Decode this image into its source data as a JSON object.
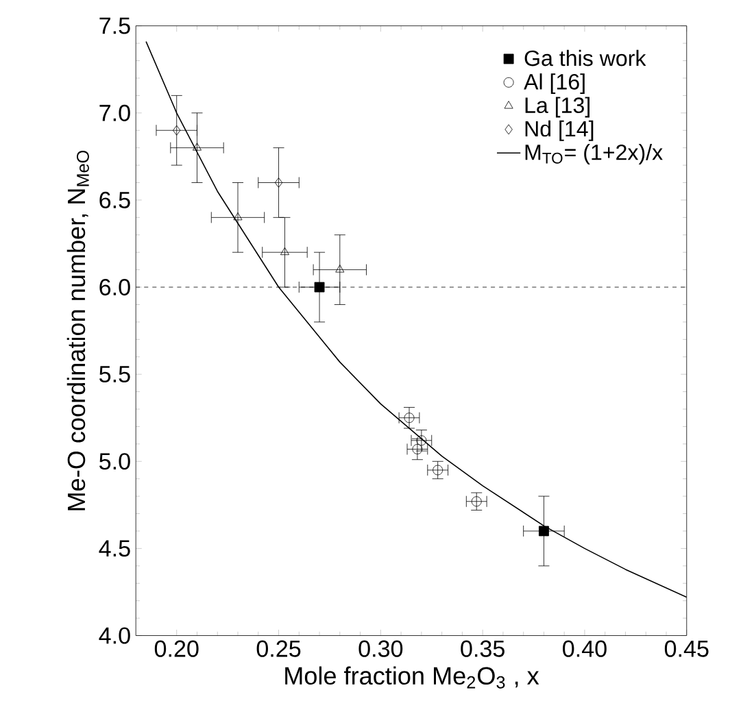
{
  "chart_data": {
    "type": "scatter",
    "xlabel": "Mole fraction Me$_{2}$O$_{3}$ , x",
    "ylabel": "Me-O coordination number, N$_{MeO}$",
    "xlim": [
      0.18,
      0.45
    ],
    "ylim": [
      4.0,
      7.5
    ],
    "xticks": [
      {
        "value": 0.2,
        "label": "0.20"
      },
      {
        "value": 0.25,
        "label": "0.25"
      },
      {
        "value": 0.3,
        "label": "0.30"
      },
      {
        "value": 0.35,
        "label": "0.35"
      },
      {
        "value": 0.4,
        "label": "0.40"
      },
      {
        "value": 0.45,
        "label": "0.45"
      }
    ],
    "yticks": [
      {
        "value": 4.0,
        "label": "4.0"
      },
      {
        "value": 4.5,
        "label": "4.5"
      },
      {
        "value": 5.0,
        "label": "5.0"
      },
      {
        "value": 5.5,
        "label": "5.5"
      },
      {
        "value": 6.0,
        "label": "6.0"
      },
      {
        "value": 6.5,
        "label": "6.5"
      },
      {
        "value": 7.0,
        "label": "7.0"
      },
      {
        "value": 7.5,
        "label": "7.5"
      }
    ],
    "legend": "top right",
    "grid": false,
    "ref_lines": [
      {
        "axis": "y",
        "value": 6.0,
        "line_style": "dashed"
      }
    ],
    "series": [
      {
        "name": "Ga this work",
        "color": "#000000",
        "marker": "square",
        "x": [
          0.27,
          0.38
        ],
        "values": [
          6.0,
          4.6
        ],
        "errors": [
          0.2,
          0.2
        ],
        "xerrors": [
          0.01,
          0.01
        ]
      },
      {
        "name": "Al [16]",
        "color": "#000000",
        "marker": "circle",
        "x": [
          0.314,
          0.32,
          0.318,
          0.328,
          0.347
        ],
        "values": [
          5.25,
          5.12,
          5.07,
          4.95,
          4.77
        ],
        "errors": [
          0.06,
          0.06,
          0.06,
          0.05,
          0.05
        ],
        "xerrors": [
          0.005,
          0.005,
          0.005,
          0.005,
          0.005
        ]
      },
      {
        "name": "La [13]",
        "color": "#000000",
        "marker": "triangle",
        "x": [
          0.21,
          0.23,
          0.253,
          0.28
        ],
        "values": [
          6.8,
          6.4,
          6.2,
          6.1
        ],
        "errors": [
          0.2,
          0.2,
          0.2,
          0.2
        ],
        "xerrors": [
          0.013,
          0.013,
          0.011,
          0.013
        ]
      },
      {
        "name": "Nd [14]",
        "color": "#000000",
        "marker": "diamond",
        "x": [
          0.2,
          0.25
        ],
        "values": [
          6.9,
          6.6
        ],
        "errors": [
          0.2,
          0.2
        ],
        "xerrors": [
          0.01,
          0.01
        ]
      },
      {
        "name": "M$_{TO}$= (1+2x)/x",
        "type": "line",
        "color": "#000000",
        "marker": "none",
        "line_style": "solid",
        "x": [
          0.185,
          0.2,
          0.22,
          0.25,
          0.28,
          0.3,
          0.33,
          0.35,
          0.38,
          0.4,
          0.42,
          0.45
        ],
        "values": [
          7.41,
          7.0,
          6.55,
          6.0,
          5.57,
          5.33,
          5.03,
          4.86,
          4.63,
          4.5,
          4.38,
          4.22
        ]
      }
    ]
  }
}
